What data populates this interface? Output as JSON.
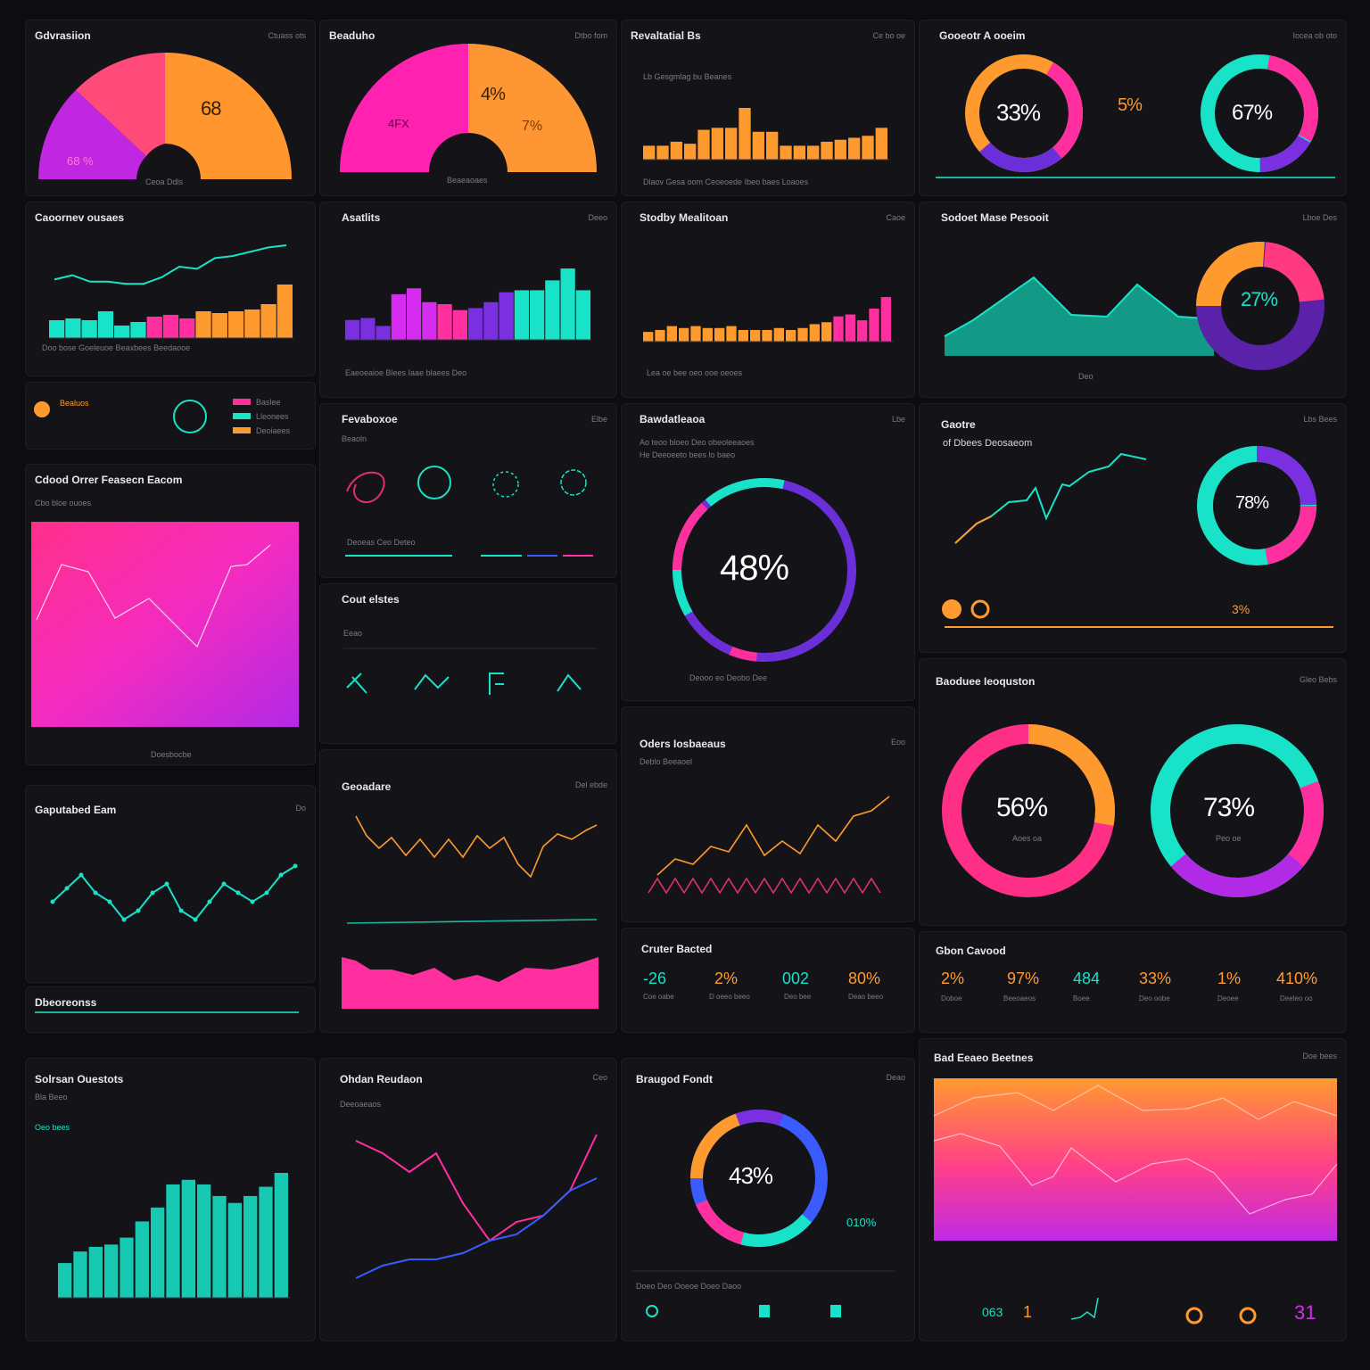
{
  "colors": {
    "orange": "#ff9a2e",
    "pink": "#ff2fa0",
    "magenta": "#d62cf0",
    "purple": "#7a2fe0",
    "teal": "#18e2c8",
    "blue": "#3a5cff",
    "bg": "#141418"
  },
  "panels": {
    "p1": {
      "title": "Gdvrasiion",
      "meta": "Ctuass ots",
      "value": "68",
      "value2": "68 %",
      "foot": "Ceoa Ddls"
    },
    "p2": {
      "title": "Beaduho",
      "meta": "Dtbo fom",
      "value": "4%",
      "value2": "4FX",
      "value3": "7%",
      "foot": "Beaeaoaes"
    },
    "p3": {
      "title": "Revaltatial Bs",
      "meta": "Ce bo oe",
      "sub": "Lb Gesgmlag  bu Beanes",
      "foot": "Dlaov  Gesa oom  Ceoeoede  Ibeo baes  Loaoes"
    },
    "p4": {
      "title": "Gooeotr A ooeim",
      "meta": "Iocea ob oto",
      "value1": "33%",
      "value2": "5%",
      "value3": "67%"
    },
    "p5": {
      "title": "Caoornev ousaes",
      "foot": "Doo bose  Goeleuoe  Beaxbees  Beedaooe"
    },
    "p6": {
      "title": "Asatlits",
      "meta": "Deeo",
      "foot": "Eaeoeaioe  Blees    Iaae blaees    Deo"
    },
    "p7": {
      "title": "Stodby Mealitoan",
      "meta": "Caoe",
      "foot": "Lea oe bee    oeo    ooe    oeoes"
    },
    "p8": {
      "title": "Sodoet Mase Pesooit",
      "meta": "Lboe Des",
      "value": "27%",
      "foot": "Deo"
    },
    "p9": {
      "title": "Bealuos",
      "legend": [
        "Baslee",
        "Lleonees",
        "Deoiaees"
      ]
    },
    "p10": {
      "title": "Cdood Orrer Feasecn Eacom",
      "sub": "Cbo bloe ouoes",
      "foot": "Doesbocbe"
    },
    "p11": {
      "title": "Fevaboxoe",
      "sub": "Beaoln",
      "meta": "Elbe",
      "foot": "Deoeas  Ceo Deteo"
    },
    "p12": {
      "title": "Bawdatleaoa",
      "meta": "Lbe",
      "sub1": "Ao teoo bloeo Deo obeoleeaoes",
      "sub2": "He Deeoeeto bees lo baeo",
      "value": "48%",
      "foot": "Deooo eo  Deobo Dee"
    },
    "p13": {
      "title": "Gaotre",
      "sub": "of Dbees Deosaeom",
      "value": "78%",
      "kpi": "3%",
      "meta": "Lbs Bees"
    },
    "p14": {
      "title": "Cout elstes",
      "sub": "Eeao"
    },
    "p15": {
      "title": "Oders Iosbaeaus",
      "meta": "Eoo",
      "sub": "Deblo Beeaoel"
    },
    "p16": {
      "title": "Geoadare",
      "meta": "Del ebde"
    },
    "p17": {
      "title": "Gaputabed Eam",
      "meta": "Do",
      "foot": "Dbeoreonss"
    },
    "p18": {
      "title": "Baoduee Ieoquston",
      "meta": "Gleo Bebs",
      "value1": "56%",
      "value2": "73%",
      "lbl1": "Aoes oa",
      "lbl2": "Peo oe"
    },
    "p19": {
      "title": "Cruter Bacted",
      "kpis": [
        {
          "v": "-26",
          "l": "Coe oabe"
        },
        {
          "v": "2%",
          "l": "D oeeo beeo"
        },
        {
          "v": "002",
          "l": "Deo bee"
        },
        {
          "v": "80%",
          "l": "Deao beeo"
        }
      ]
    },
    "p20": {
      "title": "Gbon Cavood",
      "kpis": [
        {
          "v": "2%",
          "l": "Doboe"
        },
        {
          "v": "97%",
          "l": "Beeoaeos"
        },
        {
          "v": "484",
          "l": "Boee"
        },
        {
          "v": "33%",
          "l": "Deo oobe"
        },
        {
          "v": "1%",
          "l": "Deoee"
        },
        {
          "v": "410%",
          "l": "Deeleo oo"
        }
      ]
    },
    "p21": {
      "title": "Solrsan Ouestots",
      "sub1": "Bla Beeo",
      "sub2": "Oeo bees"
    },
    "p22": {
      "title": "Ohdan Reudaon",
      "meta": "Ceo",
      "sub": "Deeoaeaos"
    },
    "p23": {
      "title": "Braugod Fondt",
      "meta": "Deao",
      "value": "43%",
      "value2": "010%",
      "foot": "Doeo  Deo  Ooeoe  Doeo  Daoo"
    },
    "p24": {
      "title": "Bad Eeaeo Beetnes",
      "meta": "Doe bees",
      "kpi1": "063",
      "kpi2": "1",
      "kpi3": "31"
    }
  },
  "chart_data": [
    {
      "id": "p3",
      "type": "bar",
      "values": [
        14,
        14,
        18,
        16,
        30,
        32,
        32,
        52,
        28,
        28,
        14,
        14,
        14,
        18,
        20,
        22,
        24,
        32
      ],
      "color": "#ff9a2e"
    },
    {
      "id": "p5",
      "type": "bar",
      "values": [
        20,
        22,
        20,
        30,
        14,
        18,
        24,
        26,
        22,
        30,
        28,
        30,
        32,
        38,
        60
      ],
      "line": [
        8,
        12,
        6,
        6,
        4,
        4,
        10,
        20,
        18,
        28,
        30,
        34,
        38,
        40
      ]
    },
    {
      "id": "p6",
      "type": "bar",
      "values": [
        20,
        22,
        14,
        46,
        52,
        38,
        36,
        30,
        32,
        38,
        48,
        50,
        50,
        60,
        72,
        50
      ]
    },
    {
      "id": "p7",
      "type": "bar",
      "values": [
        10,
        12,
        16,
        14,
        16,
        14,
        14,
        16,
        12,
        12,
        12,
        14,
        12,
        14,
        18,
        20,
        26,
        28,
        22,
        34,
        46
      ]
    },
    {
      "id": "p17",
      "type": "line",
      "values": [
        30,
        45,
        60,
        40,
        30,
        10,
        20,
        40,
        50,
        20,
        10,
        30,
        50,
        40,
        30,
        40,
        60,
        70
      ]
    },
    {
      "id": "p21",
      "type": "bar",
      "values": [
        30,
        40,
        44,
        46,
        52,
        66,
        78,
        98,
        102,
        98,
        88,
        82,
        88,
        96,
        108
      ]
    },
    {
      "id": "p22",
      "type": "line",
      "series": [
        {
          "values": [
            120,
            110,
            95,
            110,
            70,
            40,
            55,
            60,
            80,
            125
          ]
        },
        {
          "values": [
            10,
            20,
            25,
            25,
            30,
            40,
            45,
            60,
            80,
            90
          ]
        }
      ]
    }
  ]
}
